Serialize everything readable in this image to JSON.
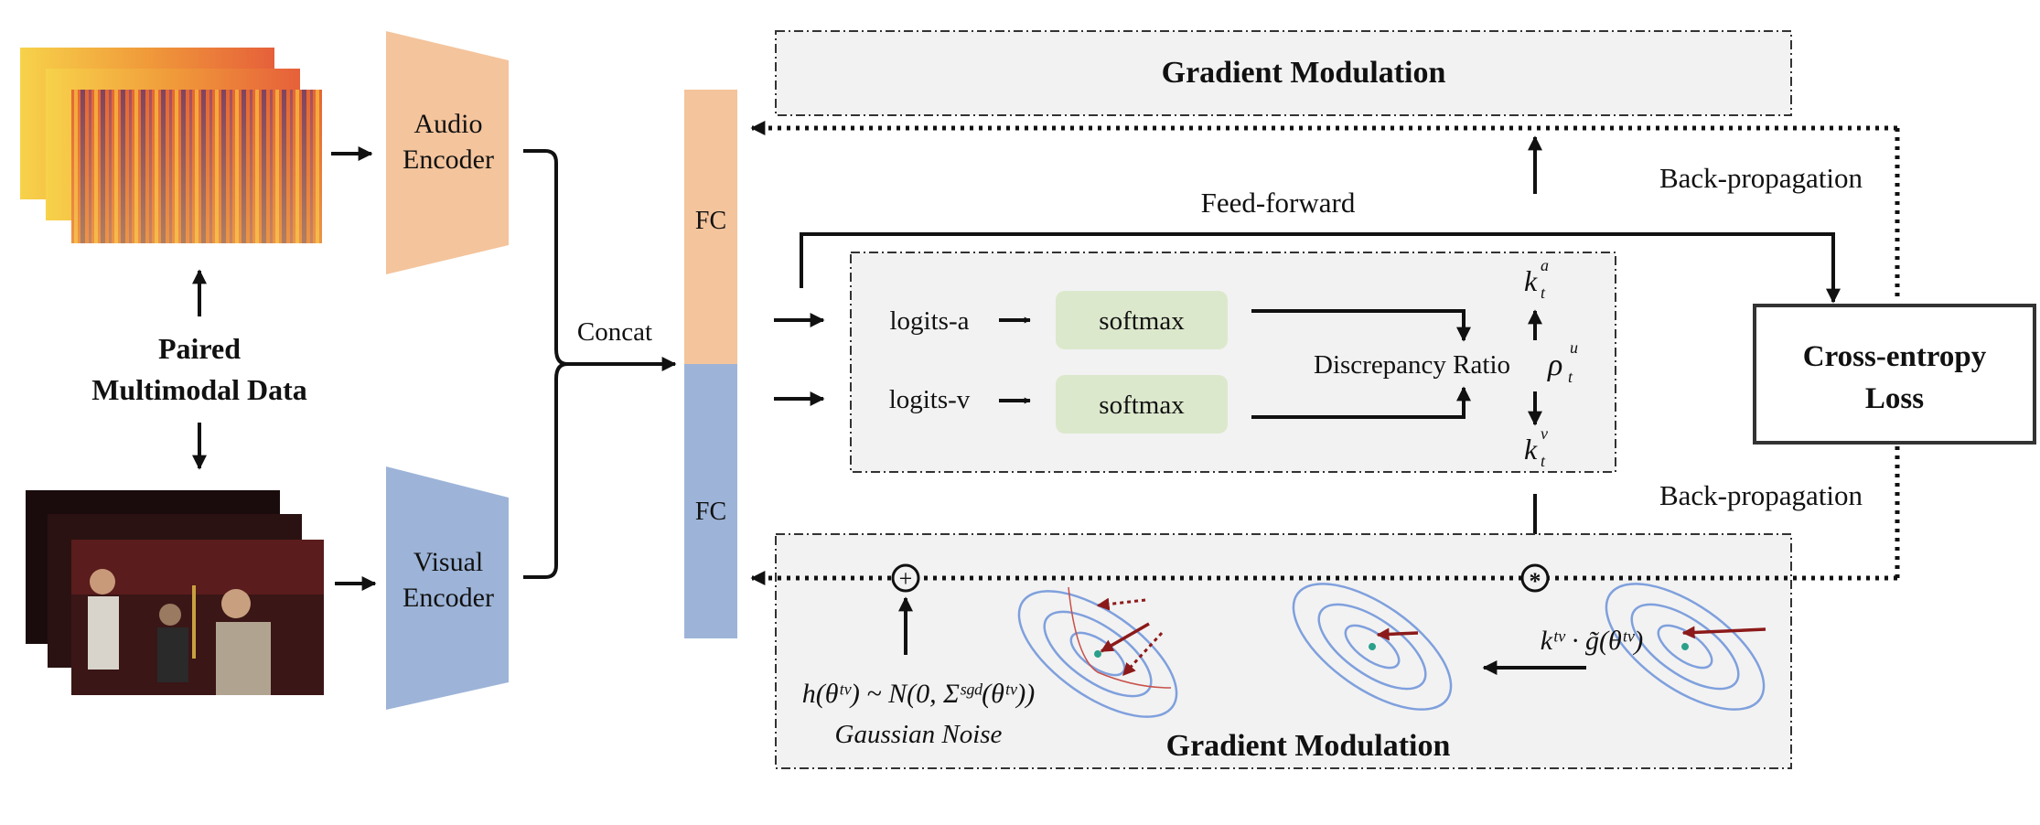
{
  "inputs": {
    "title_line1": "Paired",
    "title_line2": "Multimodal Data"
  },
  "encoders": {
    "audio_line1": "Audio",
    "audio_line2": "Encoder",
    "visual_line1": "Visual",
    "visual_line2": "Encoder",
    "concat": "Concat"
  },
  "fc": {
    "top": "FC",
    "bottom": "FC"
  },
  "flow": {
    "feed_forward": "Feed-forward",
    "backprop_top": "Back-propagation",
    "backprop_bottom": "Back-propagation",
    "loss_line1": "Cross-entropy",
    "loss_line2": "Loss"
  },
  "discrepancy": {
    "logits_a": "logits-a",
    "logits_v": "logits-v",
    "softmax_a": "softmax",
    "softmax_v": "softmax",
    "ratio_label": "Discrepancy Ratio",
    "rho": "ρ",
    "rho_sup": "u",
    "rho_sub": "t",
    "k": "k",
    "k_sub": "t",
    "k_a_sup": "a",
    "k_v_sup": "v"
  },
  "modulation": {
    "top_title": "Gradient Modulation",
    "bottom_title": "Gradient Modulation",
    "plus_symbol": "+",
    "mult_symbol": "*",
    "noise_formula": "h(θᵗᵛ) ~ N(0, Σˢᵍᵈ(θᵗᵛ))",
    "noise_caption": "Gaussian Noise",
    "scaled_gradient": "kᵗᵛ · g̃(θᵗᵛ)"
  },
  "colors": {
    "audio": "#F4C49C",
    "visual": "#9DB4D8",
    "softmax": "#DCE8CC",
    "panel": "#F2F2F2",
    "contour": "#7FA0DD",
    "arrow_red": "#8C1A1A",
    "path_red": "#C8504A"
  }
}
